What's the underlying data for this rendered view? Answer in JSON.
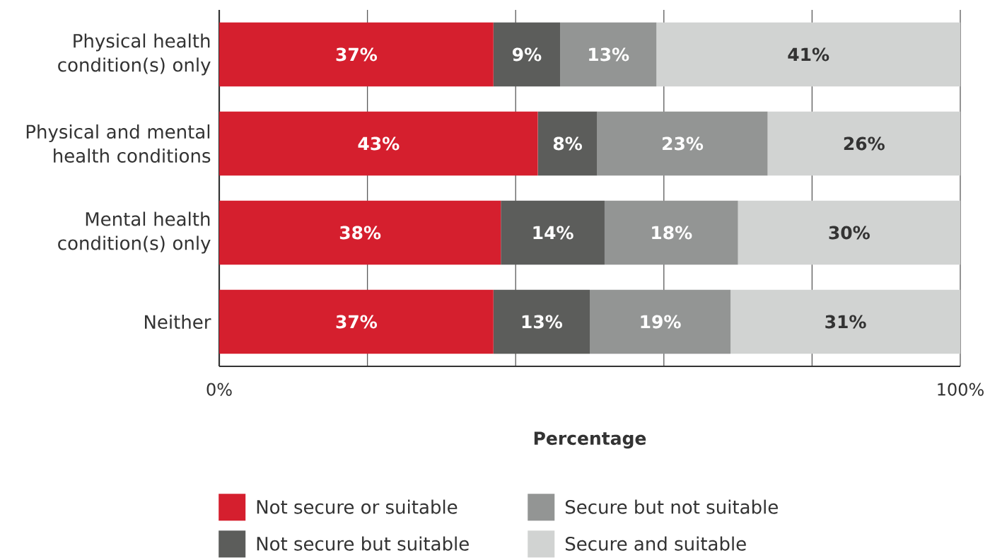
{
  "chart_data": {
    "type": "bar",
    "orientation": "horizontal",
    "stacked": true,
    "xlabel": "Percentage",
    "categories": [
      "Physical health condition(s) only",
      "Physical and mental health conditions",
      "Mental health condition(s) only",
      "Neither"
    ],
    "series": [
      {
        "name": "Not secure or suitable",
        "color": "#d51f2e",
        "values": [
          37,
          43,
          38,
          37
        ],
        "value_labels": [
          "37%",
          "43%",
          "38%",
          "37%"
        ]
      },
      {
        "name": "Not secure but suitable",
        "color": "#5c5d5b",
        "values": [
          9,
          8,
          14,
          13
        ],
        "value_labels": [
          "9%",
          "8%",
          "14%",
          "13%"
        ]
      },
      {
        "name": "Secure but not suitable",
        "color": "#939594",
        "values": [
          13,
          23,
          18,
          19
        ],
        "value_labels": [
          "13%",
          "23%",
          "18%",
          "19%"
        ]
      },
      {
        "name": "Secure and suitable",
        "color": "#d1d3d2",
        "values": [
          41,
          26,
          30,
          31
        ],
        "value_labels": [
          "41%",
          "26%",
          "30%",
          "31%"
        ]
      }
    ],
    "xlim": [
      0,
      100
    ],
    "xticks": [
      {
        "value": 0,
        "label": "0%"
      },
      {
        "value": 20,
        "label": null
      },
      {
        "value": 40,
        "label": null
      },
      {
        "value": 60,
        "label": null
      },
      {
        "value": 80,
        "label": null
      },
      {
        "value": 100,
        "label": "100%"
      }
    ],
    "grid": "x",
    "legend": "bottom"
  }
}
